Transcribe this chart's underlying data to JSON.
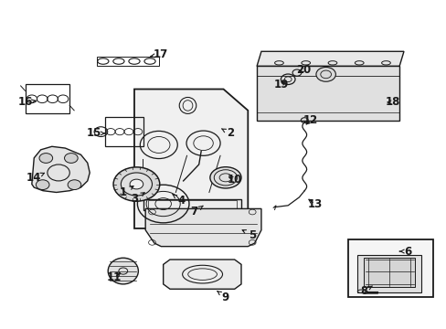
{
  "bg_color": "#ffffff",
  "line_color": "#1a1a1a",
  "fig_width": 4.89,
  "fig_height": 3.6,
  "dpi": 100,
  "labels": {
    "1": [
      0.275,
      0.415,
      0.305,
      0.44
    ],
    "2": [
      0.515,
      0.595,
      0.495,
      0.61
    ],
    "3": [
      0.3,
      0.395,
      0.33,
      0.42
    ],
    "4": [
      0.405,
      0.39,
      0.385,
      0.41
    ],
    "5": [
      0.565,
      0.285,
      0.535,
      0.305
    ],
    "6": [
      0.915,
      0.235,
      0.895,
      0.235
    ],
    "7": [
      0.435,
      0.355,
      0.455,
      0.375
    ],
    "8": [
      0.815,
      0.115,
      0.835,
      0.13
    ],
    "9": [
      0.505,
      0.095,
      0.485,
      0.115
    ],
    "10": [
      0.525,
      0.455,
      0.505,
      0.465
    ],
    "11": [
      0.255,
      0.155,
      0.275,
      0.175
    ],
    "12": [
      0.695,
      0.635,
      0.68,
      0.615
    ],
    "13": [
      0.705,
      0.38,
      0.685,
      0.4
    ],
    "14": [
      0.075,
      0.46,
      0.1,
      0.475
    ],
    "15": [
      0.21,
      0.595,
      0.235,
      0.595
    ],
    "16": [
      0.055,
      0.69,
      0.08,
      0.695
    ],
    "17": [
      0.36,
      0.835,
      0.335,
      0.83
    ],
    "18": [
      0.88,
      0.69,
      0.86,
      0.69
    ],
    "19": [
      0.63,
      0.745,
      0.645,
      0.76
    ],
    "20": [
      0.68,
      0.79,
      0.665,
      0.775
    ]
  }
}
